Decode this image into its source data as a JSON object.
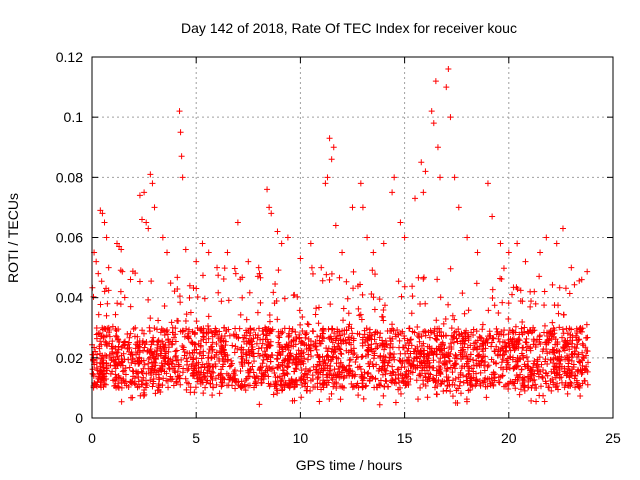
{
  "chart_data": {
    "type": "scatter",
    "title": "Day 142 of 2018, Rate Of TEC Index for receiver kouc",
    "xlabel": "GPS time / hours",
    "ylabel": "ROTI / TECUs",
    "xlim": [
      0,
      25
    ],
    "ylim": [
      0,
      0.12
    ],
    "x_ticks": [
      "0",
      "5",
      "10",
      "15",
      "20",
      "25"
    ],
    "y_ticks": [
      "0",
      "0.02",
      "0.04",
      "0.06",
      "0.08",
      "0.1",
      "0.12"
    ],
    "x_tick_values": [
      0,
      5,
      10,
      15,
      20,
      25
    ],
    "y_tick_values": [
      0,
      0.02,
      0.04,
      0.06,
      0.08,
      0.1,
      0.12
    ],
    "grid": true,
    "marker": "+",
    "color": "#ff0000",
    "series": [
      {
        "points": [
          [
            0.1,
            0.055
          ],
          [
            0.2,
            0.052
          ],
          [
            0.3,
            0.048
          ],
          [
            0.4,
            0.069
          ],
          [
            0.5,
            0.068
          ],
          [
            0.6,
            0.065
          ],
          [
            0.7,
            0.06
          ],
          [
            0.8,
            0.05
          ],
          [
            1.2,
            0.058
          ],
          [
            1.3,
            0.057
          ],
          [
            1.4,
            0.056
          ],
          [
            2.3,
            0.074
          ],
          [
            2.4,
            0.066
          ],
          [
            2.5,
            0.075
          ],
          [
            2.6,
            0.065
          ],
          [
            2.7,
            0.063
          ],
          [
            2.8,
            0.081
          ],
          [
            2.9,
            0.078
          ],
          [
            3.0,
            0.07
          ],
          [
            3.4,
            0.06
          ],
          [
            3.6,
            0.055
          ],
          [
            4.2,
            0.102
          ],
          [
            4.25,
            0.095
          ],
          [
            4.3,
            0.087
          ],
          [
            4.35,
            0.08
          ],
          [
            4.5,
            0.056
          ],
          [
            5.0,
            0.052
          ],
          [
            5.3,
            0.058
          ],
          [
            5.6,
            0.055
          ],
          [
            6.0,
            0.05
          ],
          [
            6.5,
            0.055
          ],
          [
            7.0,
            0.065
          ],
          [
            7.5,
            0.052
          ],
          [
            8.0,
            0.05
          ],
          [
            8.4,
            0.076
          ],
          [
            8.5,
            0.07
          ],
          [
            8.6,
            0.068
          ],
          [
            8.9,
            0.062
          ],
          [
            9.1,
            0.058
          ],
          [
            9.4,
            0.06
          ],
          [
            10.0,
            0.053
          ],
          [
            10.5,
            0.058
          ],
          [
            11.0,
            0.05
          ],
          [
            11.2,
            0.078
          ],
          [
            11.3,
            0.08
          ],
          [
            11.4,
            0.093
          ],
          [
            11.5,
            0.086
          ],
          [
            11.6,
            0.09
          ],
          [
            11.7,
            0.064
          ],
          [
            12.0,
            0.055
          ],
          [
            12.5,
            0.07
          ],
          [
            12.9,
            0.078
          ],
          [
            13.0,
            0.07
          ],
          [
            13.2,
            0.06
          ],
          [
            13.5,
            0.055
          ],
          [
            14.0,
            0.058
          ],
          [
            14.4,
            0.075
          ],
          [
            14.5,
            0.08
          ],
          [
            14.8,
            0.065
          ],
          [
            15.0,
            0.06
          ],
          [
            15.5,
            0.073
          ],
          [
            15.8,
            0.085
          ],
          [
            15.9,
            0.075
          ],
          [
            16.0,
            0.082
          ],
          [
            16.3,
            0.102
          ],
          [
            16.4,
            0.098
          ],
          [
            16.5,
            0.112
          ],
          [
            16.6,
            0.09
          ],
          [
            16.7,
            0.08
          ],
          [
            17.0,
            0.11
          ],
          [
            17.1,
            0.116
          ],
          [
            17.2,
            0.1
          ],
          [
            17.4,
            0.08
          ],
          [
            17.6,
            0.07
          ],
          [
            18.0,
            0.06
          ],
          [
            18.5,
            0.055
          ],
          [
            19.0,
            0.078
          ],
          [
            19.2,
            0.067
          ],
          [
            19.6,
            0.058
          ],
          [
            20.0,
            0.055
          ],
          [
            20.4,
            0.058
          ],
          [
            20.8,
            0.052
          ],
          [
            21.5,
            0.055
          ],
          [
            21.8,
            0.06
          ],
          [
            22.3,
            0.058
          ],
          [
            22.6,
            0.063
          ],
          [
            23.0,
            0.05
          ],
          [
            23.5,
            0.046
          ]
        ],
        "band": {
          "description_hours": [
            0,
            23.8
          ],
          "low": 0.004,
          "core_low": 0.01,
          "core_high": 0.03,
          "high": 0.05
        }
      }
    ]
  }
}
